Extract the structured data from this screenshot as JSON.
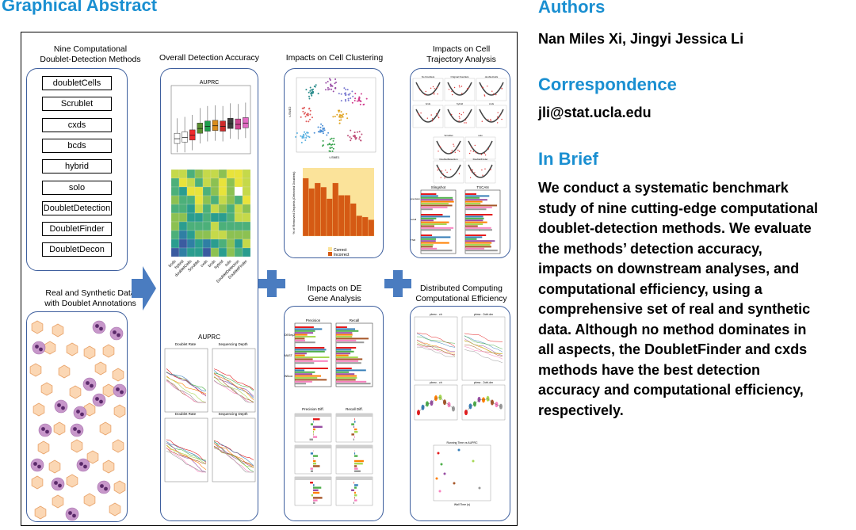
{
  "left_column": {
    "title": "Graphical Abstract"
  },
  "abstract": {
    "methods_title": "Nine Computational\nDoublet-Detection Methods",
    "methods": [
      "doubletCells",
      "Scrublet",
      "cxds",
      "bcds",
      "hybrid",
      "solo",
      "DoubletDetection",
      "DoubletFinder",
      "DoubletDecon"
    ],
    "data_title": "Real and Synthetic Data\nwith Doublet Annotations",
    "accuracy_title": "Overall Detection Accuracy",
    "auprc_label": "AUPRC",
    "auprc_label_lower": "AUPRC",
    "heatmap_xlabels": [
      "bcds",
      "hybrid",
      "doubletCells",
      "Scrublet",
      "cxds",
      "bcds",
      "hybrid",
      "solo",
      "DoubletDetection",
      "DoubletFinder"
    ],
    "clustering_title": "Impacts on Cell Clustering",
    "tsne_x": "t-SNE1",
    "tsne_y": "t-SNE2",
    "removed_ylabel": "% of Removed Droplets\n(Detected Doublets)",
    "legend_correct": "Correct",
    "legend_incorrect": "Incorrect",
    "trajectory_title": "Impacts on Cell\nTrajectory Analysis",
    "traj_panel_labels": [
      "No Doublets",
      "Original Doublets",
      "doubletCells",
      "bcds",
      "hybrid",
      "cxds",
      "Scrublet",
      "solo",
      "DoubletDetection",
      "DoubletFinder"
    ],
    "traj_bar_titles": [
      "Slingshot",
      "TSCAN"
    ],
    "traj_bar_ylabels": [
      "precision",
      "recall",
      "TNR"
    ],
    "de_title": "Impacts on DE\nGene Analysis",
    "de_bar_titles": [
      "Precision",
      "Recall"
    ],
    "de_bar_ylabels": [
      "DESeq2",
      "MAST",
      "Wilcox"
    ],
    "de_diff_titles": [
      "Precision Diff.",
      "Recall Diff."
    ],
    "dist_title": "Distributed Computing\nComputational Efficiency",
    "dist_plot_titles": [
      "pbmc - ch",
      "pbmc - 2ctrl-dm",
      "pbmc - ch",
      "pbmc - 2ctrl-dm"
    ],
    "runtime_title": "Running Time vs AUPRC",
    "runtime_xlabel": "Wall Time (s)",
    "lower_small_titles": [
      "Doublet Rate",
      "Sequencing Depth",
      "Doublet Rate",
      "Sequencing Depth"
    ],
    "boxplot_colors": [
      "#ffffff",
      "#ffffff",
      "#ef2b2b",
      "#5a8f2e",
      "#1e9f4d",
      "#d98c1c",
      "#cf2b2b",
      "#3d3d3d",
      "#cc4490",
      "#e36cc4"
    ],
    "series_colors": [
      "#e41a1c",
      "#377eb8",
      "#4daf4a",
      "#984ea3",
      "#ff7f00",
      "#a6d854",
      "#a65628",
      "#f781bf",
      "#999999"
    ],
    "cell_colors": {
      "singlet_fill": "#fbd7b4",
      "singlet_stroke": "#e8a269",
      "doublet_fill": "#c797ca",
      "nucleus": "#5b2a6b"
    }
  },
  "right_column": {
    "authors_heading": "Authors",
    "authors": "Nan Miles Xi, Jingyi Jessica Li",
    "correspondence_heading": "Correspondence",
    "email": "jli@stat.ucla.edu",
    "brief_heading": "In Brief",
    "brief_text": "We conduct a systematic benchmark\nstudy of nine cutting-edge computational\ndoublet-detection methods. We evaluate\nthe methods’ detection accuracy,\nimpacts on downstream analyses, and\ncomputational efficiency, using a\ncomprehensive set of real and synthetic\ndata. Although no method dominates in\nall aspects, the DoubletFinder and cxds\nmethods have the best detection\naccuracy and computational efficiency,\nrespectively."
  }
}
